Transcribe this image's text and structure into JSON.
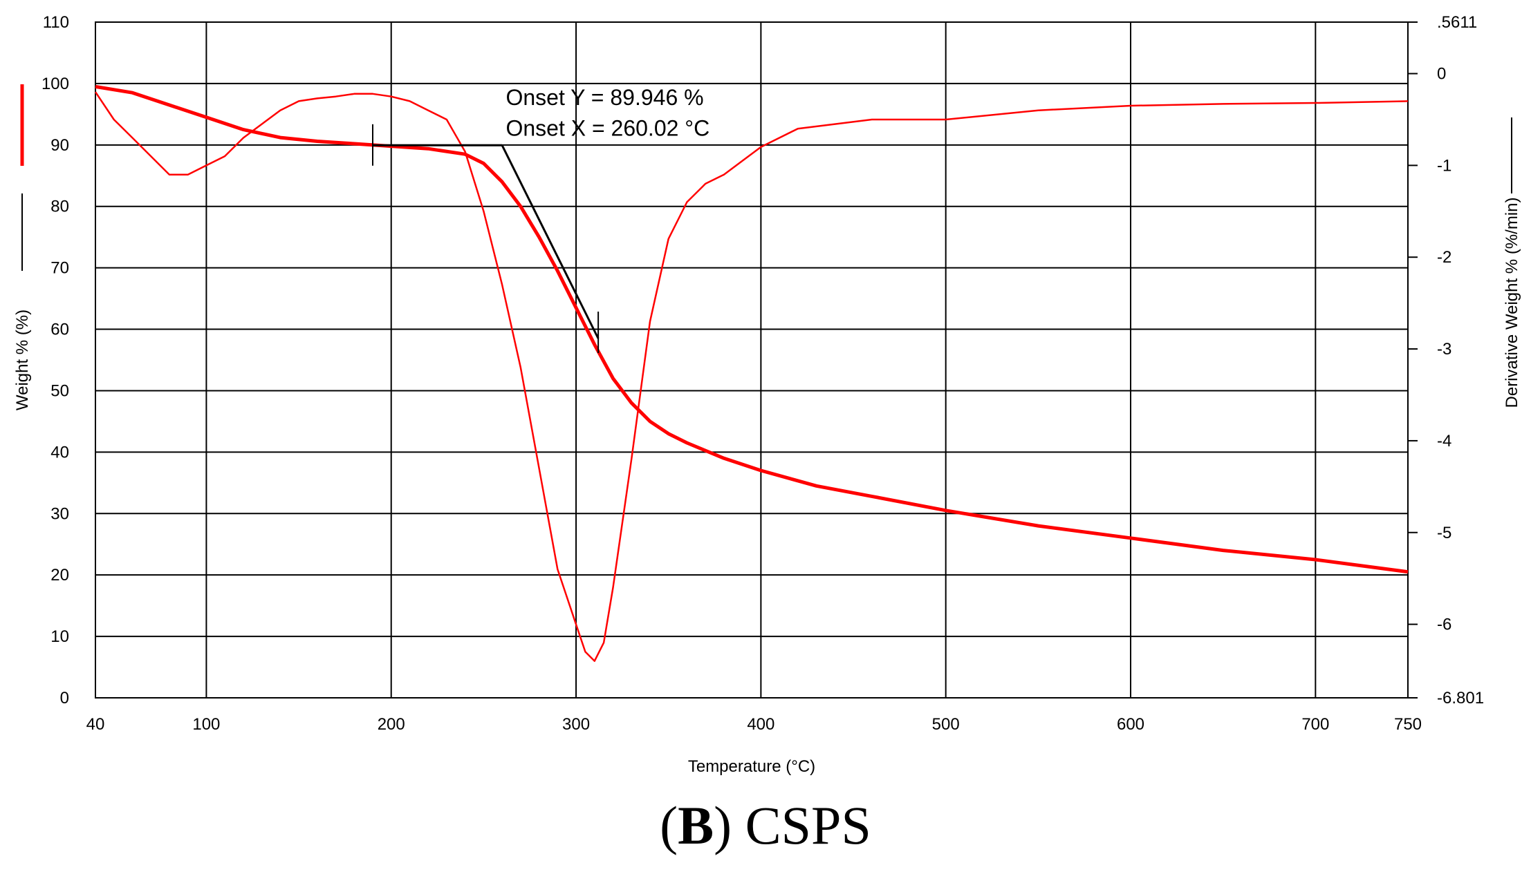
{
  "chart_data": {
    "type": "line",
    "title": "",
    "xlabel": "Temperature (°C)",
    "ylabel_left": "Weight % (%)",
    "ylabel_right": "Derivative Weight % (%/min)",
    "xlim": [
      40,
      750
    ],
    "ylim_left": [
      0,
      110
    ],
    "ylim_right": [
      -6.801,
      0.5611
    ],
    "x_ticks": [
      40,
      100,
      200,
      300,
      400,
      500,
      600,
      700,
      750
    ],
    "y_left_ticks": [
      0,
      10,
      20,
      30,
      40,
      50,
      60,
      70,
      80,
      90,
      100,
      110
    ],
    "y_right_ticks": [
      {
        "value": 0.5611,
        "label": ".5611"
      },
      {
        "value": 0,
        "label": "0"
      },
      {
        "value": -1,
        "label": "-1"
      },
      {
        "value": -2,
        "label": "-2"
      },
      {
        "value": -3,
        "label": "-3"
      },
      {
        "value": -4,
        "label": "-4"
      },
      {
        "value": -5,
        "label": "-5"
      },
      {
        "value": -6,
        "label": "-6"
      },
      {
        "value": -6.801,
        "label": "-6.801"
      }
    ],
    "grid": true,
    "series": [
      {
        "name": "Weight %",
        "axis": "left",
        "color": "#ff0000",
        "x": [
          40,
          60,
          80,
          100,
          120,
          140,
          160,
          180,
          200,
          220,
          240,
          250,
          260,
          270,
          280,
          290,
          300,
          310,
          320,
          330,
          340,
          350,
          360,
          380,
          400,
          430,
          460,
          500,
          550,
          600,
          650,
          700,
          750
        ],
        "y": [
          99.5,
          98.5,
          96.5,
          94.5,
          92.5,
          91.2,
          90.6,
          90.2,
          89.8,
          89.4,
          88.5,
          87.0,
          84.0,
          80.0,
          75.0,
          69.5,
          63.5,
          57.5,
          52.0,
          48.0,
          45.0,
          43.0,
          41.5,
          39.0,
          37.0,
          34.5,
          32.8,
          30.5,
          28.0,
          26.0,
          24.0,
          22.5,
          20.5
        ]
      },
      {
        "name": "Derivative Weight %",
        "axis": "right",
        "color": "#ff0000",
        "x": [
          40,
          50,
          60,
          70,
          80,
          90,
          100,
          110,
          120,
          130,
          140,
          150,
          160,
          170,
          180,
          190,
          200,
          210,
          220,
          230,
          240,
          250,
          260,
          270,
          280,
          290,
          300,
          305,
          310,
          315,
          320,
          330,
          340,
          350,
          360,
          370,
          380,
          390,
          400,
          420,
          440,
          460,
          500,
          550,
          600,
          650,
          700,
          750
        ],
        "y": [
          -0.2,
          -0.5,
          -0.7,
          -0.9,
          -1.1,
          -1.1,
          -1.0,
          -0.9,
          -0.7,
          -0.55,
          -0.4,
          -0.3,
          -0.27,
          -0.25,
          -0.22,
          -0.22,
          -0.25,
          -0.3,
          -0.4,
          -0.5,
          -0.85,
          -1.5,
          -2.3,
          -3.2,
          -4.3,
          -5.4,
          -6.0,
          -6.3,
          -6.4,
          -6.2,
          -5.6,
          -4.2,
          -2.7,
          -1.8,
          -1.4,
          -1.2,
          -1.1,
          -0.95,
          -0.8,
          -0.6,
          -0.55,
          -0.5,
          -0.5,
          -0.4,
          -0.35,
          -0.33,
          -0.32,
          -0.3
        ]
      }
    ],
    "onset_construction": {
      "baseline": {
        "x": [
          190,
          260
        ],
        "y": [
          89.946,
          89.946
        ]
      },
      "tangent": {
        "x": [
          260,
          312
        ],
        "y": [
          89.946,
          58.5
        ]
      },
      "markers": [
        {
          "x": 190,
          "y": 90.0
        },
        {
          "x": 312,
          "y": 59.5
        }
      ]
    },
    "annotations": [
      {
        "text": "Onset  Y = 89.946 %",
        "x": 262,
        "y": 96.5
      },
      {
        "text": "Onset  X = 260.02 °C",
        "x": 262,
        "y": 91.5
      }
    ],
    "legend": [
      {
        "label": "Weight % (%)",
        "color": "#ff0000",
        "style": "solid"
      },
      {
        "label": "Derivative Weight % (%/min)",
        "color": "#000000",
        "style": "solid"
      }
    ]
  },
  "caption": {
    "letter": "B",
    "text": " CSPS"
  }
}
